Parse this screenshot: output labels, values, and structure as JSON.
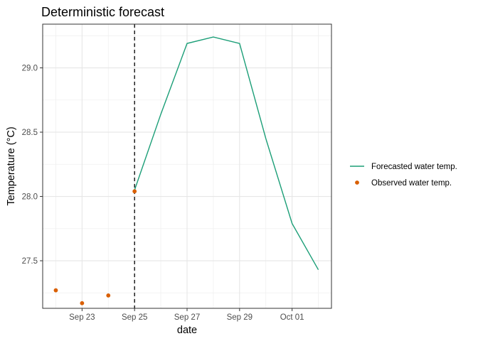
{
  "chart_data": {
    "type": "line",
    "title": "Deterministic forecast",
    "xlabel": "date",
    "ylabel": "Temperature (°C)",
    "x_type": "date",
    "xlim": [
      "2023-09-21T12:00",
      "2023-10-02T12:00"
    ],
    "ylim": [
      27.13,
      29.34
    ],
    "x_ticks": [
      {
        "date": "2023-09-23",
        "label": "Sep 23"
      },
      {
        "date": "2023-09-25",
        "label": "Sep 25"
      },
      {
        "date": "2023-09-27",
        "label": "Sep 27"
      },
      {
        "date": "2023-09-29",
        "label": "Sep 29"
      },
      {
        "date": "2023-10-01",
        "label": "Oct 01"
      }
    ],
    "y_ticks": [
      27.5,
      28.0,
      28.5,
      29.0
    ],
    "grid": true,
    "vline": {
      "x": "2023-09-25",
      "style": "dashed",
      "color": "#000000"
    },
    "series": [
      {
        "name": "Forecasted water temp.",
        "kind": "line",
        "color": "#1b9e77",
        "points": [
          {
            "x": "2023-09-25",
            "y": 28.05
          },
          {
            "x": "2023-09-26",
            "y": 28.64
          },
          {
            "x": "2023-09-27",
            "y": 29.19
          },
          {
            "x": "2023-09-28",
            "y": 29.24
          },
          {
            "x": "2023-09-29",
            "y": 29.19
          },
          {
            "x": "2023-09-30",
            "y": 28.45
          },
          {
            "x": "2023-10-01",
            "y": 27.79
          },
          {
            "x": "2023-10-02",
            "y": 27.43
          }
        ]
      },
      {
        "name": "Observed water temp.",
        "kind": "point",
        "color": "#d95f02",
        "points": [
          {
            "x": "2023-09-22",
            "y": 27.27
          },
          {
            "x": "2023-09-23",
            "y": 27.17
          },
          {
            "x": "2023-09-24",
            "y": 27.23
          },
          {
            "x": "2023-09-25",
            "y": 28.04
          }
        ]
      }
    ],
    "legend_position": "right"
  }
}
